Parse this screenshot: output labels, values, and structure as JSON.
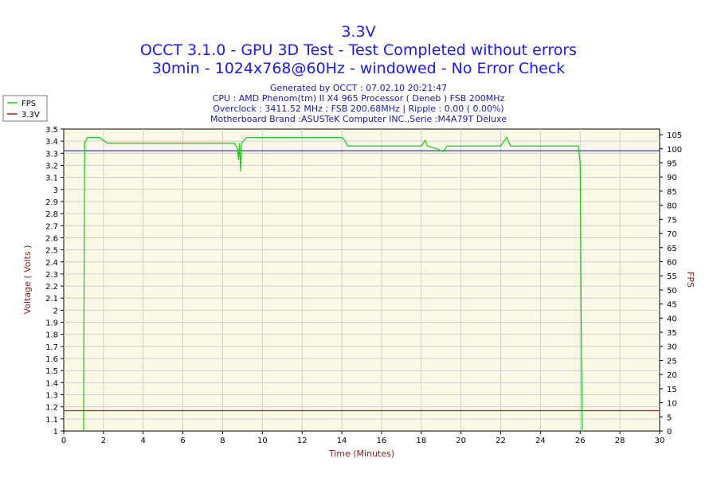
{
  "chart_data": {
    "type": "line",
    "title_lines": [
      "3.3V",
      "OCCT 3.1.0 - GPU 3D Test - Test Completed without errors",
      "30min - 1024x768@60Hz - windowed - No Error Check"
    ],
    "info_lines": [
      "Generated by OCCT : 07.02.10 20:21:47",
      "CPU : AMD Phenom(tm) II X4 965 Processor ( Deneb ) FSB 200MHz",
      "Overclock : 3411.52 MHz ; FSB 200.68MHz | Ripple : 0.00 ( 0.00%)",
      "Motherboard Brand :ASUSTeK Computer INC.,Serie :M4A79T Deluxe"
    ],
    "xlabel": "Time (Minutes)",
    "ylabel_left": "Voltage ( Volts )",
    "ylabel_right": "FPS",
    "xlim": [
      0,
      30
    ],
    "ylim_left": [
      1,
      3.5
    ],
    "ylim_right": [
      0,
      107
    ],
    "x_ticks": [
      "0",
      "2",
      "4",
      "6",
      "8",
      "10",
      "12",
      "14",
      "16",
      "18",
      "20",
      "22",
      "24",
      "26",
      "28",
      "30"
    ],
    "y_left_ticks": [
      "3.5",
      "3.4",
      "3.3",
      "3.2",
      "3.1",
      "3",
      "2.9",
      "2.8",
      "2.7",
      "2.6",
      "2.5",
      "2.4",
      "2.3",
      "2.2",
      "2.1",
      "2",
      "1.9",
      "1.8",
      "1.7",
      "1.6",
      "1.5",
      "1.4",
      "1.3",
      "1.2",
      "1.1",
      "1"
    ],
    "y_right_ticks": [
      "105",
      "100",
      "95",
      "90",
      "85",
      "80",
      "75",
      "70",
      "65",
      "60",
      "55",
      "50",
      "45",
      "40",
      "35",
      "30",
      "25",
      "20",
      "15",
      "10",
      "5",
      "0"
    ],
    "grid": true,
    "legend_position": "top-left-outside",
    "series": [
      {
        "name": "FPS",
        "axis": "right",
        "color": "#22cc22",
        "points": [
          [
            1.0,
            0
          ],
          [
            1.05,
            102
          ],
          [
            1.2,
            104
          ],
          [
            1.5,
            104
          ],
          [
            1.8,
            104
          ],
          [
            2.0,
            103
          ],
          [
            2.2,
            102
          ],
          [
            3,
            102
          ],
          [
            4,
            102
          ],
          [
            5,
            102
          ],
          [
            6,
            102
          ],
          [
            7,
            102
          ],
          [
            8,
            102
          ],
          [
            8.6,
            102
          ],
          [
            8.75,
            100
          ],
          [
            8.8,
            96
          ],
          [
            8.85,
            102
          ],
          [
            8.9,
            92
          ],
          [
            8.95,
            102
          ],
          [
            9.2,
            104
          ],
          [
            10,
            104
          ],
          [
            11,
            104
          ],
          [
            12,
            104
          ],
          [
            13,
            104
          ],
          [
            14,
            104
          ],
          [
            14.15,
            103
          ],
          [
            14.3,
            101
          ],
          [
            15,
            101
          ],
          [
            16,
            101
          ],
          [
            17,
            101
          ],
          [
            18,
            101
          ],
          [
            18.2,
            103
          ],
          [
            18.3,
            101
          ],
          [
            18.8,
            100
          ],
          [
            19.1,
            99
          ],
          [
            19.3,
            101
          ],
          [
            20,
            101
          ],
          [
            21,
            101
          ],
          [
            22,
            101
          ],
          [
            22.3,
            104
          ],
          [
            22.5,
            101
          ],
          [
            23,
            101
          ],
          [
            24,
            101
          ],
          [
            25,
            101
          ],
          [
            25.9,
            101
          ],
          [
            26.0,
            95
          ],
          [
            26.05,
            40
          ],
          [
            26.1,
            0
          ],
          [
            26.15,
            0
          ]
        ]
      },
      {
        "name": "3.3V",
        "axis": "left",
        "color": "#aa2222",
        "points": [
          [
            0,
            1.168
          ],
          [
            30,
            1.168
          ]
        ]
      }
    ],
    "reference_lines": [
      {
        "axis": "left",
        "value": 3.32,
        "color": "#2222aa"
      }
    ],
    "colors": {
      "title": "#1a1aff",
      "info": "#1a1aaa",
      "axis_label": "#8b1a1a",
      "plot_bg": "#fbf9e6",
      "grid": "#cfcfcf"
    }
  }
}
